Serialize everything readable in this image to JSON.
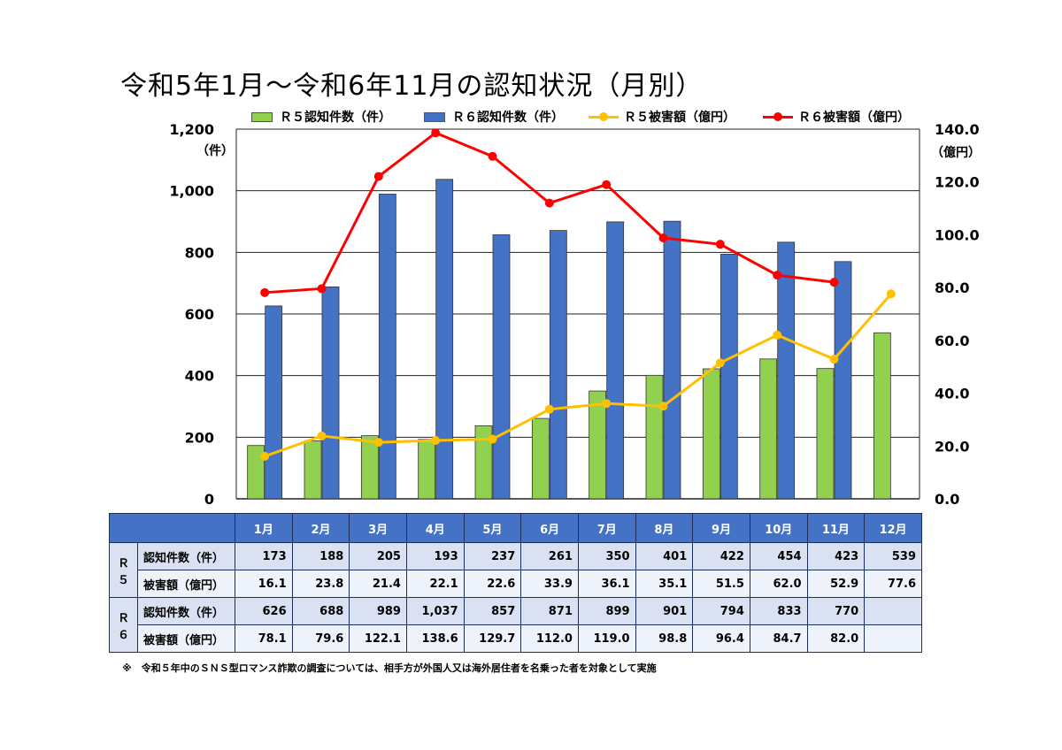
{
  "title": "令和5年1月～令和6年11月の認知状況（月別）",
  "units": {
    "left": "（件）",
    "right": "（億円）"
  },
  "legend": {
    "r5_count": "Ｒ５認知件数（件）",
    "r6_count": "Ｒ６認知件数（件）",
    "r5_damage": "Ｒ５被害額（億円）",
    "r6_damage": "Ｒ６被害額（億円）"
  },
  "colors": {
    "r5_bar": "#92d050",
    "r6_bar": "#4472c4",
    "r5_line": "#ffc000",
    "r6_line": "#ff0000",
    "header": "#4472c4"
  },
  "chart_data": {
    "type": "bar",
    "title": "令和5年1月～令和6年11月の認知状況（月別）",
    "categories": [
      "1月",
      "2月",
      "3月",
      "4月",
      "5月",
      "6月",
      "7月",
      "8月",
      "9月",
      "10月",
      "11月",
      "12月"
    ],
    "y_left": {
      "label": "（件）",
      "range": [
        0,
        1200
      ],
      "ticks": [
        "0",
        "200",
        "400",
        "600",
        "800",
        "1,000",
        "1,200"
      ],
      "tick_values": [
        0,
        200,
        400,
        600,
        800,
        1000,
        1200
      ]
    },
    "y_right": {
      "label": "（億円）",
      "range": [
        0,
        140
      ],
      "ticks": [
        "0.0",
        "20.0",
        "40.0",
        "60.0",
        "80.0",
        "100.0",
        "120.0",
        "140.0"
      ],
      "tick_values": [
        0,
        20,
        40,
        60,
        80,
        100,
        120,
        140
      ]
    },
    "grid": true,
    "legend_position": "top",
    "series": [
      {
        "name": "Ｒ５認知件数（件）",
        "type": "bar",
        "axis": "left",
        "values": [
          173,
          188,
          205,
          193,
          237,
          261,
          350,
          401,
          422,
          454,
          423,
          539
        ]
      },
      {
        "name": "Ｒ６認知件数（件）",
        "type": "bar",
        "axis": "left",
        "values": [
          626,
          688,
          989,
          1037,
          857,
          871,
          899,
          901,
          794,
          833,
          770,
          null
        ]
      },
      {
        "name": "Ｒ５被害額（億円）",
        "type": "line",
        "axis": "right",
        "values": [
          16.1,
          23.8,
          21.4,
          22.1,
          22.6,
          33.9,
          36.1,
          35.1,
          51.5,
          62.0,
          52.9,
          77.6
        ]
      },
      {
        "name": "Ｒ６被害額（億円）",
        "type": "line",
        "axis": "right",
        "values": [
          78.1,
          79.6,
          122.1,
          138.6,
          129.7,
          112.0,
          119.0,
          98.8,
          96.4,
          84.7,
          82.0,
          null
        ]
      }
    ]
  },
  "table": {
    "months": [
      "1月",
      "2月",
      "3月",
      "4月",
      "5月",
      "6月",
      "7月",
      "8月",
      "9月",
      "10月",
      "11月",
      "12月"
    ],
    "groups": [
      {
        "year": "Ｒ５",
        "rows": [
          {
            "label": "認知件数（件）",
            "cells": [
              "173",
              "188",
              "205",
              "193",
              "237",
              "261",
              "350",
              "401",
              "422",
              "454",
              "423",
              "539"
            ]
          },
          {
            "label": "被害額（億円）",
            "cells": [
              "16.1",
              "23.8",
              "21.4",
              "22.1",
              "22.6",
              "33.9",
              "36.1",
              "35.1",
              "51.5",
              "62.0",
              "52.9",
              "77.6"
            ]
          }
        ]
      },
      {
        "year": "Ｒ６",
        "rows": [
          {
            "label": "認知件数（件）",
            "cells": [
              "626",
              "688",
              "989",
              "1,037",
              "857",
              "871",
              "899",
              "901",
              "794",
              "833",
              "770",
              ""
            ]
          },
          {
            "label": "被害額（億円）",
            "cells": [
              "78.1",
              "79.6",
              "122.1",
              "138.6",
              "129.7",
              "112.0",
              "119.0",
              "98.8",
              "96.4",
              "84.7",
              "82.0",
              ""
            ]
          }
        ]
      }
    ]
  },
  "footnote": "※　令和５年中のＳＮＳ型ロマンス詐欺の調査については、相手方が外国人又は海外居住者を名乗った者を対象として実施"
}
